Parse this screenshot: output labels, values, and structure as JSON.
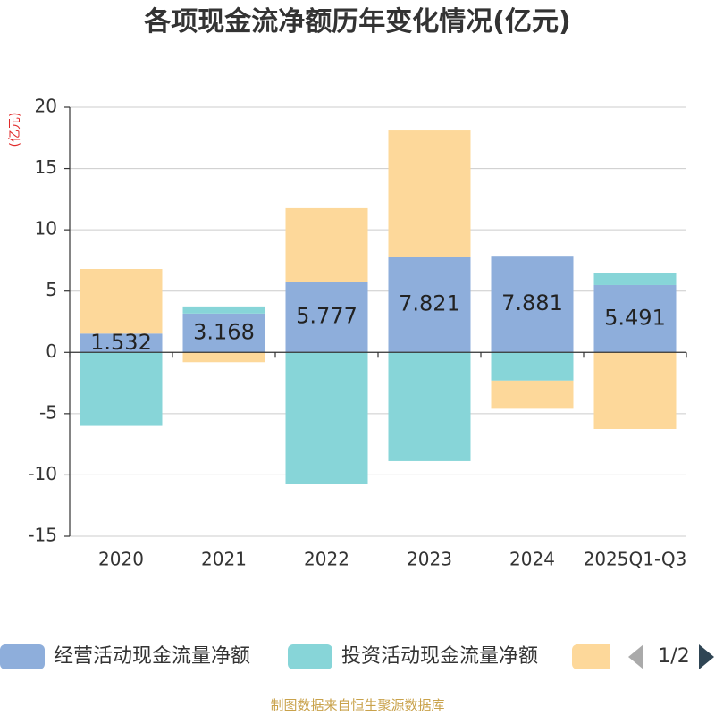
{
  "chart_data": {
    "type": "bar",
    "stacked": true,
    "title": "各项现金流净额历年变化情况(亿元)",
    "ylabel": "(亿元)",
    "xlabel": "",
    "categories": [
      "2020",
      "2021",
      "2022",
      "2023",
      "2024",
      "2025Q1-Q3"
    ],
    "ylim": [
      -15,
      20
    ],
    "yticks": [
      20,
      15,
      10,
      5,
      0,
      -5,
      -10,
      -15
    ],
    "grid": true,
    "legend_position": "bottom",
    "series": [
      {
        "name": "经营活动现金流量净额",
        "color": "#8eaedb",
        "show_labels": true,
        "values": [
          1.532,
          3.168,
          5.777,
          7.821,
          7.881,
          5.491
        ]
      },
      {
        "name": "投资活动现金流量净额",
        "color": "#87d5d8",
        "show_labels": false,
        "values": [
          -6.0,
          0.58,
          -10.77,
          -8.87,
          -2.3,
          1.0
        ]
      },
      {
        "name": "",
        "color": "#fdd89a",
        "show_labels": false,
        "values": [
          5.27,
          -0.8,
          5.99,
          10.28,
          -2.3,
          -6.25
        ]
      }
    ]
  },
  "legend": {
    "page": "1/2",
    "prev_icon": "chevron-left-icon",
    "next_icon": "chevron-right-icon"
  },
  "footer": "制图数据来自恒生聚源数据库"
}
